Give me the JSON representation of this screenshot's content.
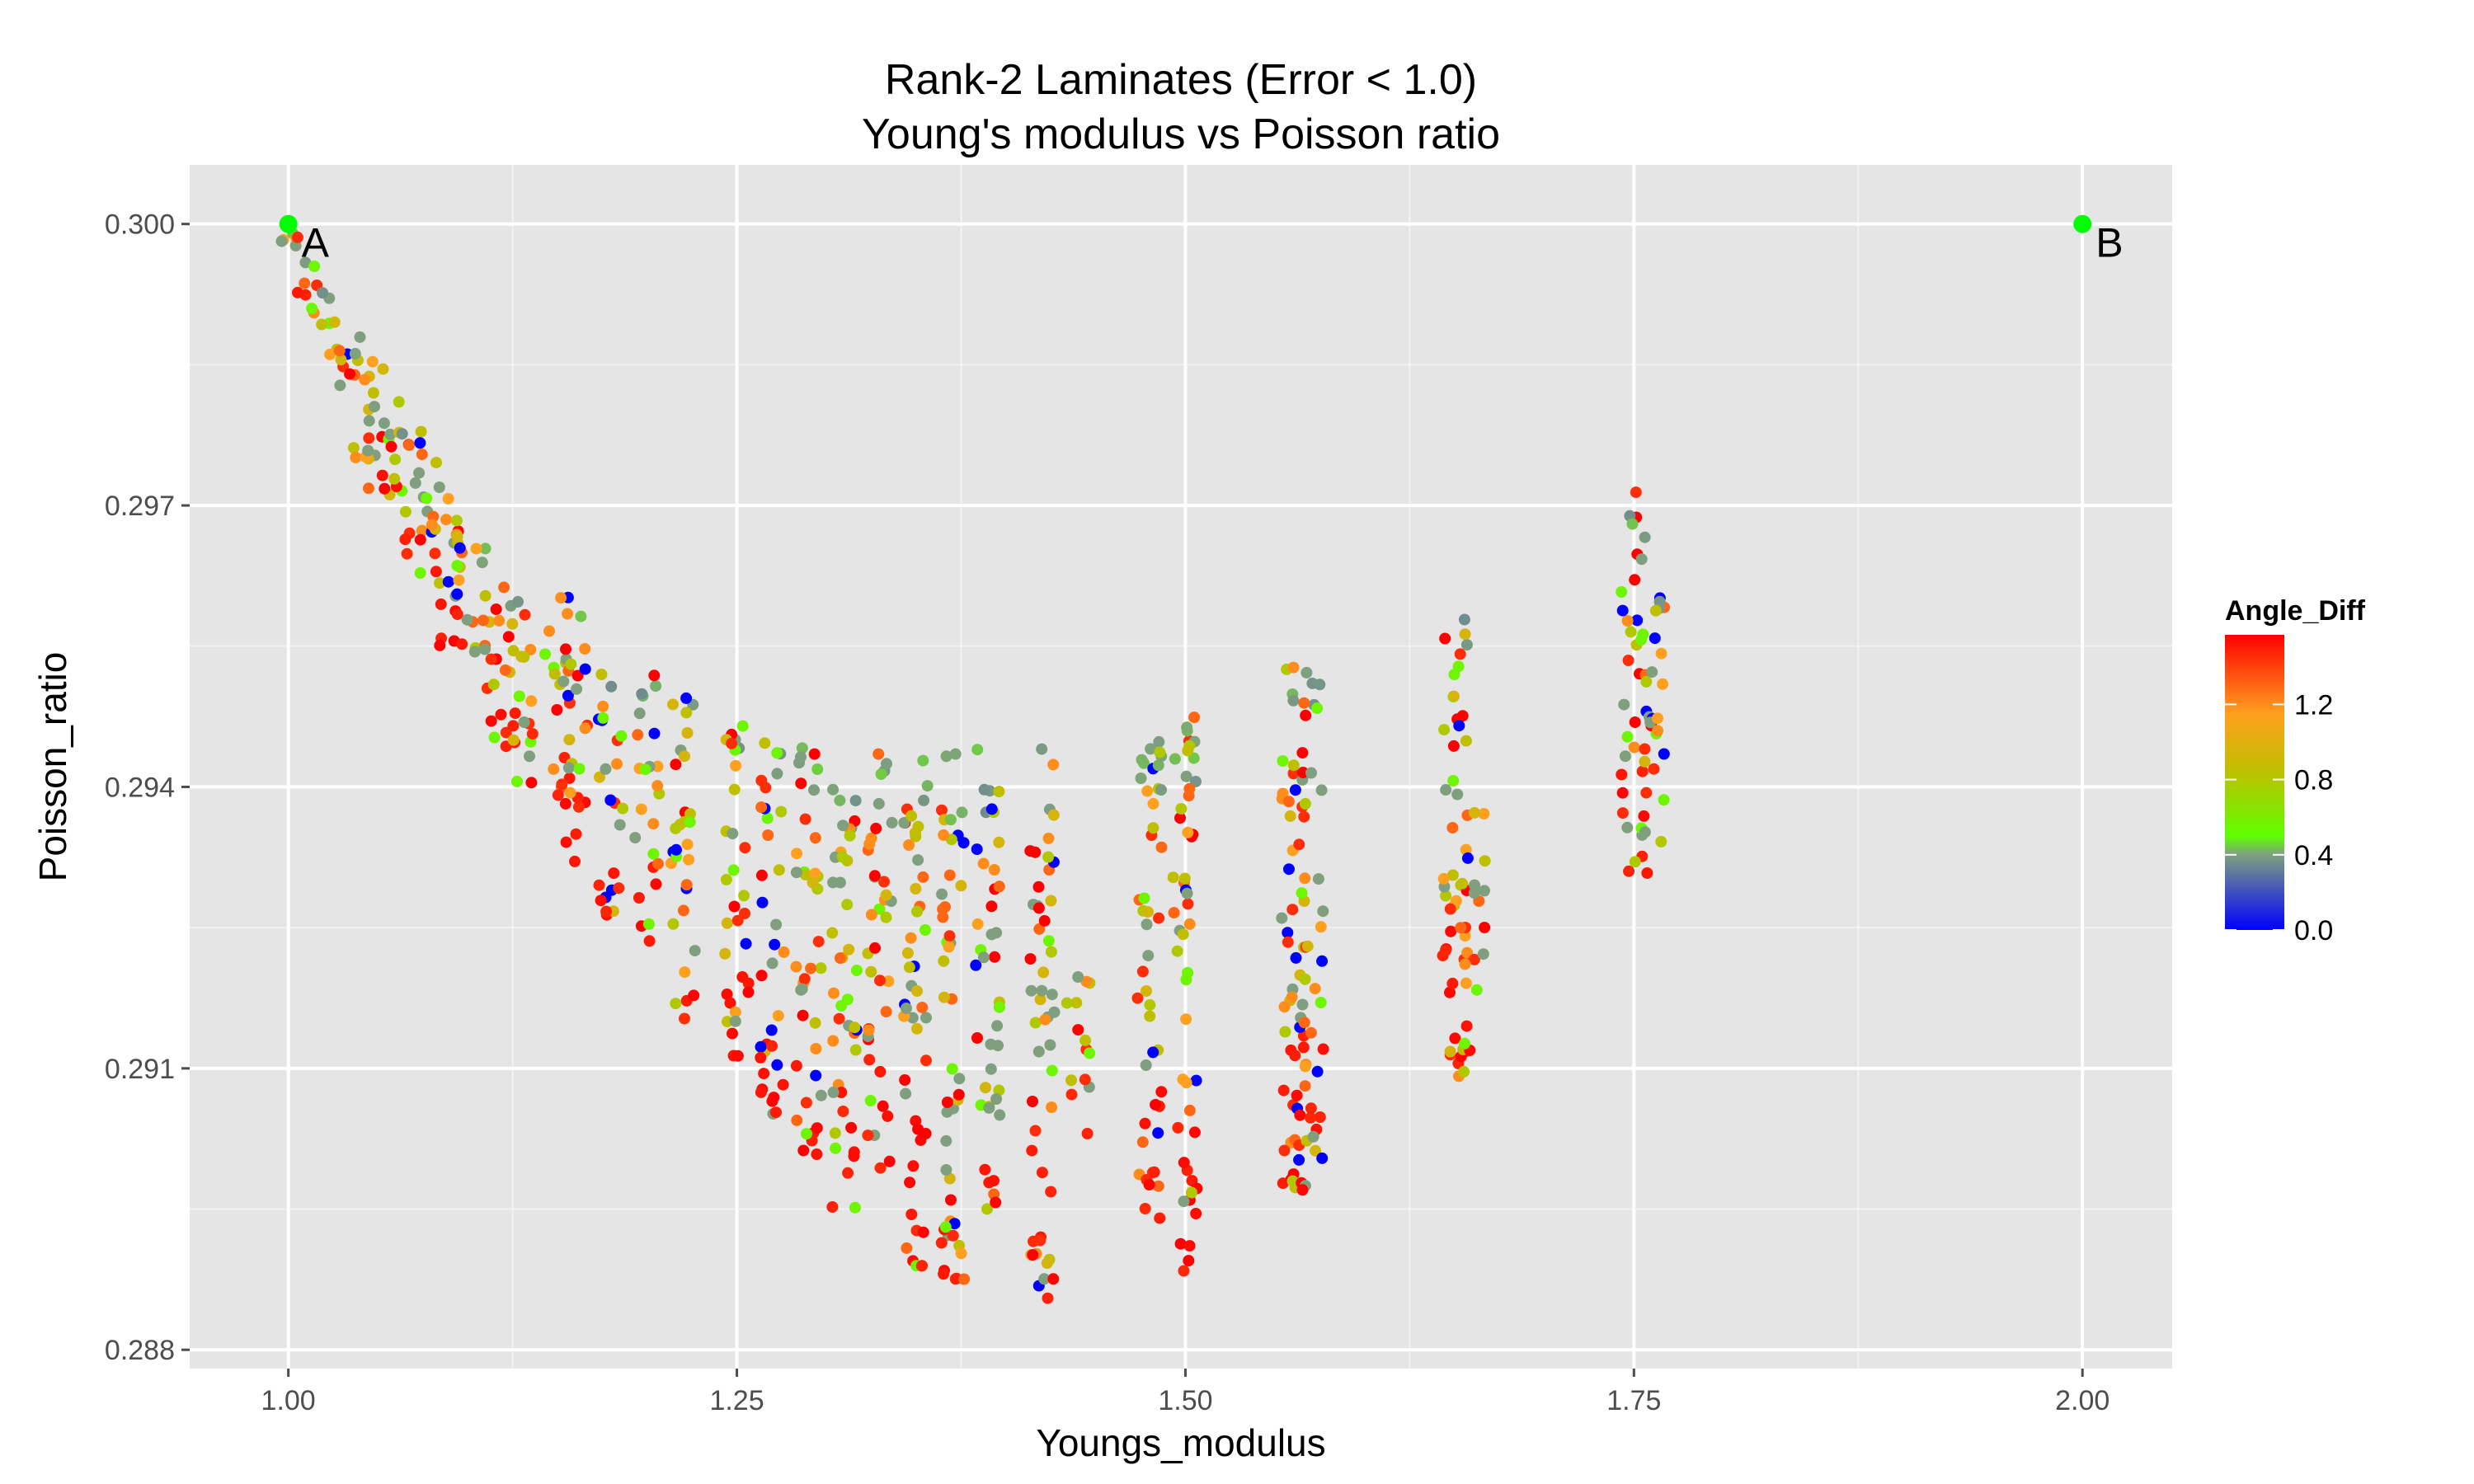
{
  "chart_data": {
    "type": "scatter",
    "title": "Rank-2 Laminates (Error < 1.0)",
    "subtitle": "Young's modulus vs Poisson ratio",
    "xlabel": "Youngs_modulus",
    "ylabel": "Poisson_ratio",
    "xlim": [
      0.945,
      2.05
    ],
    "ylim": [
      0.2878,
      0.30063
    ],
    "x_ticks": [
      {
        "value": 1.0,
        "label": "1.00"
      },
      {
        "value": 1.25,
        "label": "1.25"
      },
      {
        "value": 1.5,
        "label": "1.50"
      },
      {
        "value": 1.75,
        "label": "1.75"
      },
      {
        "value": 2.0,
        "label": "2.00"
      }
    ],
    "y_ticks": [
      {
        "value": 0.288,
        "label": "0.288"
      },
      {
        "value": 0.291,
        "label": "0.291"
      },
      {
        "value": 0.294,
        "label": "0.294"
      },
      {
        "value": 0.297,
        "label": "0.297"
      },
      {
        "value": 0.3,
        "label": "0.300"
      }
    ],
    "grid": true,
    "panel_background": "#e5e5e5",
    "legend": {
      "title": "Angle_Diff",
      "placement": "right",
      "ticks": [
        {
          "value": 0.0,
          "label": "0.0"
        },
        {
          "value": 0.4,
          "label": "0.4"
        },
        {
          "value": 0.8,
          "label": "0.8"
        },
        {
          "value": 1.2,
          "label": "1.2"
        }
      ],
      "range": [
        0.0,
        1.57
      ],
      "stops": [
        {
          "value": 0.0,
          "color": "#0000ff"
        },
        {
          "value": 0.4,
          "color": "#7f9f7f"
        },
        {
          "value": 0.5,
          "color": "#5fff00"
        },
        {
          "value": 0.85,
          "color": "#bfbf00"
        },
        {
          "value": 1.15,
          "color": "#ffa020"
        },
        {
          "value": 1.57,
          "color": "#ff0000"
        }
      ]
    },
    "annotations": [
      {
        "label": "A",
        "x": 1.0,
        "y": 0.3,
        "color": "#00ff00"
      },
      {
        "label": "B",
        "x": 2.0,
        "y": 0.3,
        "color": "#00ff00"
      }
    ],
    "clusters": [
      {
        "x": 1.0,
        "y_min": 0.2997,
        "y_max": 0.2999
      },
      {
        "x": 1.01,
        "y_min": 0.2992,
        "y_max": 0.2996
      },
      {
        "x": 1.02,
        "y_min": 0.2987,
        "y_max": 0.2993
      },
      {
        "x": 1.03,
        "y_min": 0.298,
        "y_max": 0.299
      },
      {
        "x": 1.04,
        "y_min": 0.2975,
        "y_max": 0.2988
      },
      {
        "x": 1.05,
        "y_min": 0.297,
        "y_max": 0.2985
      },
      {
        "x": 1.06,
        "y_min": 0.2968,
        "y_max": 0.2982
      },
      {
        "x": 1.07,
        "y_min": 0.2963,
        "y_max": 0.2978
      },
      {
        "x": 1.08,
        "y_min": 0.296,
        "y_max": 0.2975
      },
      {
        "x": 1.09,
        "y_min": 0.2955,
        "y_max": 0.2972
      },
      {
        "x": 1.1,
        "y_min": 0.2955,
        "y_max": 0.2968
      },
      {
        "x": 1.11,
        "y_min": 0.295,
        "y_max": 0.2966
      },
      {
        "x": 1.12,
        "y_min": 0.2944,
        "y_max": 0.2962
      },
      {
        "x": 1.13,
        "y_min": 0.294,
        "y_max": 0.2962
      },
      {
        "x": 1.15,
        "y_min": 0.2937,
        "y_max": 0.2961
      },
      {
        "x": 1.16,
        "y_min": 0.2932,
        "y_max": 0.2959
      },
      {
        "x": 1.18,
        "y_min": 0.2926,
        "y_max": 0.2955
      },
      {
        "x": 1.2,
        "y_min": 0.2923,
        "y_max": 0.2952
      },
      {
        "x": 1.22,
        "y_min": 0.2915,
        "y_max": 0.2951
      },
      {
        "x": 1.25,
        "y_min": 0.2908,
        "y_max": 0.2948
      },
      {
        "x": 1.27,
        "y_min": 0.2905,
        "y_max": 0.2947
      },
      {
        "x": 1.29,
        "y_min": 0.2898,
        "y_max": 0.2945
      },
      {
        "x": 1.31,
        "y_min": 0.2895,
        "y_max": 0.2945
      },
      {
        "x": 1.33,
        "y_min": 0.2898,
        "y_max": 0.2944
      },
      {
        "x": 1.35,
        "y_min": 0.2888,
        "y_max": 0.2944
      },
      {
        "x": 1.37,
        "y_min": 0.2886,
        "y_max": 0.2944
      },
      {
        "x": 1.39,
        "y_min": 0.2895,
        "y_max": 0.2944
      },
      {
        "x": 1.42,
        "y_min": 0.2885,
        "y_max": 0.2945
      },
      {
        "x": 1.44,
        "y_min": 0.2903,
        "y_max": 0.292
      },
      {
        "x": 1.48,
        "y_min": 0.2892,
        "y_max": 0.2946
      },
      {
        "x": 1.5,
        "y_min": 0.2888,
        "y_max": 0.2948
      },
      {
        "x": 1.56,
        "y_min": 0.2897,
        "y_max": 0.2953
      },
      {
        "x": 1.57,
        "y_min": 0.2895,
        "y_max": 0.2954
      },
      {
        "x": 1.65,
        "y_min": 0.2909,
        "y_max": 0.2961
      },
      {
        "x": 1.66,
        "y_min": 0.2908,
        "y_max": 0.2938
      },
      {
        "x": 1.75,
        "y_min": 0.293,
        "y_max": 0.2972
      },
      {
        "x": 1.76,
        "y_min": 0.293,
        "y_max": 0.2962
      }
    ]
  }
}
